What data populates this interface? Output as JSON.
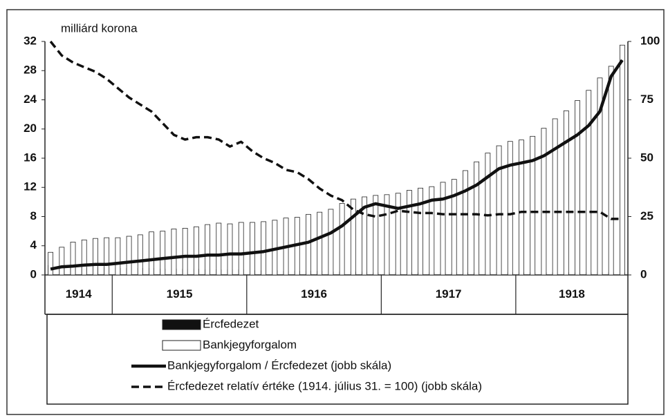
{
  "chart_data": {
    "type": "bar",
    "y_label": "milliárd korona",
    "categories": [
      null,
      null,
      null,
      null,
      null,
      null,
      null,
      null,
      null,
      null,
      null,
      null,
      null,
      null,
      null,
      null,
      null,
      null,
      null,
      null,
      null,
      null,
      null,
      null,
      null,
      null,
      null,
      null,
      null,
      null,
      null,
      null,
      null,
      null,
      null,
      null,
      null,
      null,
      null,
      null,
      null,
      null,
      null,
      null,
      null,
      null,
      null,
      null,
      null,
      null,
      null,
      null
    ],
    "year_groups": [
      {
        "label": "1914",
        "months": 6
      },
      {
        "label": "1915",
        "months": 12
      },
      {
        "label": "1916",
        "months": 12
      },
      {
        "label": "1917",
        "months": 12
      },
      {
        "label": "1918",
        "months": 10
      }
    ],
    "series": [
      {
        "name": "Ércfedezet",
        "type": "bar",
        "color": "#111111",
        "values": [
          1.3,
          1.1,
          1.0,
          1.0,
          1.0,
          1.0,
          0.9,
          0.9,
          0.9,
          0.9,
          0.8,
          0.8,
          0.8,
          0.8,
          0.7,
          0.7,
          0.7,
          0.7,
          0.6,
          0.6,
          0.6,
          0.5,
          0.5,
          0.5,
          0.5,
          0.4,
          0.4,
          0.4,
          0.4,
          0.3,
          0.3,
          0.3,
          0.3,
          0.3,
          0.3,
          0.3,
          0.3,
          0.3,
          0.3,
          0.3,
          0.3,
          0.3,
          0.3,
          0.3,
          0.3,
          0.3,
          0.3,
          0.3,
          0.3,
          0.3,
          0.3,
          0.3
        ]
      },
      {
        "name": "Bankjegyforgalom",
        "type": "bar",
        "color": "#ffffff",
        "values": [
          3.1,
          3.8,
          4.5,
          4.8,
          5.0,
          5.1,
          5.1,
          5.3,
          5.5,
          5.9,
          6.0,
          6.3,
          6.4,
          6.6,
          6.9,
          7.1,
          7.0,
          7.2,
          7.2,
          7.3,
          7.5,
          7.8,
          7.9,
          8.3,
          8.6,
          9.0,
          9.8,
          10.4,
          10.7,
          10.9,
          11.0,
          11.2,
          11.6,
          11.9,
          12.1,
          12.7,
          13.1,
          14.3,
          15.5,
          16.7,
          17.7,
          18.3,
          18.5,
          19.0,
          20.1,
          21.4,
          22.5,
          23.9,
          25.3,
          27.0,
          28.6,
          31.5
        ]
      },
      {
        "name": "Bankjegyforgalom / Ércfedezet (jobb skála)",
        "type": "line",
        "axis": "y2",
        "color": "#111111",
        "dash": false,
        "values": [
          2.5,
          3.5,
          3.8,
          4.2,
          4.5,
          4.5,
          5,
          5.5,
          6,
          6.5,
          7,
          7.5,
          8,
          8,
          8.5,
          8.5,
          9,
          9,
          9.5,
          10,
          11,
          12,
          13,
          14,
          16,
          18,
          21,
          25,
          29,
          30.5,
          29.5,
          28.5,
          29.5,
          30.5,
          32,
          32.5,
          34,
          36,
          38.5,
          42,
          45.5,
          47,
          48,
          49,
          51,
          54,
          57,
          60,
          64,
          70,
          85,
          92
        ]
      },
      {
        "name": "Ércfedezet relatív értéke (1914. július 31. = 100) (jobb skála)",
        "type": "line",
        "axis": "y2",
        "color": "#111111",
        "dash": true,
        "values": [
          100,
          94,
          91,
          89,
          87,
          84,
          80,
          76,
          73,
          70,
          65,
          60,
          58,
          59,
          59,
          58,
          55,
          57,
          53,
          50,
          48,
          45,
          44,
          41,
          37,
          34,
          32,
          28,
          26,
          25,
          26,
          27.5,
          27,
          26.5,
          26.5,
          26,
          26,
          26,
          26,
          25.5,
          26,
          26,
          27,
          27,
          27,
          27,
          27,
          27,
          27,
          27,
          24,
          24
        ]
      }
    ],
    "ylim": [
      0,
      32
    ],
    "yticks": [
      0,
      4,
      8,
      12,
      16,
      20,
      24,
      28,
      32
    ],
    "y2lim": [
      0,
      100
    ],
    "y2ticks": [
      0,
      25,
      50,
      75,
      100
    ]
  }
}
